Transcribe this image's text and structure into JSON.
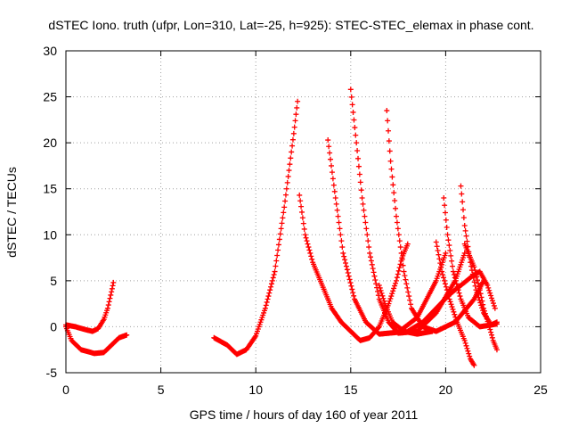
{
  "chart_data": {
    "type": "scatter",
    "title": "dSTEC Iono. truth (ufpr, Lon=310, Lat=-25, h=925): STEC-STEC_elemax in phase cont.",
    "xlabel": "GPS time / hours of day 160 of year 2011",
    "ylabel": "dSTEC  / TECUs",
    "xlim": [
      0,
      25
    ],
    "ylim": [
      -5,
      30
    ],
    "xticks": [
      "0",
      "5",
      "10",
      "15",
      "20",
      "25"
    ],
    "yticks": [
      "-5",
      "0",
      "5",
      "10",
      "15",
      "20",
      "25",
      "30"
    ],
    "grid": true,
    "marker": "+",
    "color": "#ff0000",
    "series": [
      {
        "points": [
          [
            0.0,
            0.2
          ],
          [
            0.5,
            0.0
          ],
          [
            1.0,
            -0.3
          ],
          [
            1.4,
            -0.5
          ],
          [
            1.7,
            -0.2
          ],
          [
            2.0,
            0.8
          ],
          [
            2.2,
            2.0
          ],
          [
            2.4,
            3.8
          ],
          [
            2.5,
            4.8
          ]
        ]
      },
      {
        "points": [
          [
            0.0,
            0.0
          ],
          [
            0.3,
            -1.5
          ],
          [
            0.8,
            -2.5
          ],
          [
            1.5,
            -2.9
          ],
          [
            2.0,
            -2.8
          ],
          [
            2.4,
            -2.0
          ],
          [
            2.8,
            -1.2
          ],
          [
            3.2,
            -0.9
          ]
        ]
      },
      {
        "points": [
          [
            7.8,
            -1.2
          ],
          [
            8.5,
            -2.0
          ],
          [
            9.0,
            -3.0
          ],
          [
            9.5,
            -2.5
          ],
          [
            10.0,
            -1.0
          ],
          [
            10.5,
            2.0
          ],
          [
            11.0,
            6.0
          ],
          [
            11.5,
            13.0
          ],
          [
            12.0,
            21.0
          ],
          [
            12.2,
            24.5
          ]
        ]
      },
      {
        "points": [
          [
            12.3,
            14.3
          ],
          [
            12.6,
            10.0
          ],
          [
            13.0,
            7.0
          ],
          [
            13.5,
            4.5
          ],
          [
            14.0,
            2.0
          ],
          [
            14.5,
            0.5
          ],
          [
            15.0,
            -0.5
          ],
          [
            15.5,
            -1.5
          ],
          [
            16.0,
            -1.2
          ],
          [
            16.5,
            0.0
          ],
          [
            17.0,
            2.5
          ],
          [
            17.4,
            5.0
          ],
          [
            17.7,
            7.5
          ],
          [
            18.0,
            9.0
          ]
        ]
      },
      {
        "points": [
          [
            13.8,
            20.3
          ],
          [
            14.2,
            14.0
          ],
          [
            14.6,
            8.0
          ],
          [
            15.2,
            3.0
          ],
          [
            15.8,
            0.5
          ],
          [
            16.5,
            -0.8
          ],
          [
            17.5,
            -0.6
          ],
          [
            18.5,
            1.0
          ],
          [
            19.5,
            5.0
          ],
          [
            20.0,
            8.0
          ]
        ]
      },
      {
        "points": [
          [
            15.0,
            25.8
          ],
          [
            15.3,
            20.0
          ],
          [
            15.6,
            14.0
          ],
          [
            16.0,
            8.0
          ],
          [
            16.5,
            3.0
          ],
          [
            17.0,
            0.5
          ],
          [
            17.5,
            -0.7
          ],
          [
            18.5,
            -0.5
          ],
          [
            19.5,
            1.5
          ],
          [
            20.5,
            5.0
          ],
          [
            21.0,
            8.0
          ]
        ]
      },
      {
        "points": [
          [
            16.9,
            23.5
          ],
          [
            17.1,
            18.0
          ],
          [
            17.4,
            12.0
          ],
          [
            17.8,
            6.0
          ],
          [
            18.2,
            2.0
          ],
          [
            18.8,
            0.0
          ],
          [
            19.5,
            -0.5
          ],
          [
            20.5,
            0.5
          ],
          [
            21.5,
            3.0
          ],
          [
            22.0,
            5.0
          ]
        ]
      },
      {
        "points": [
          [
            19.9,
            14.0
          ],
          [
            20.1,
            10.0
          ],
          [
            20.4,
            6.0
          ],
          [
            20.8,
            3.0
          ],
          [
            21.2,
            1.0
          ],
          [
            21.8,
            0.0
          ],
          [
            22.7,
            0.3
          ]
        ]
      },
      {
        "points": [
          [
            20.8,
            15.3
          ],
          [
            21.0,
            11.0
          ],
          [
            21.3,
            7.0
          ],
          [
            21.6,
            4.0
          ],
          [
            22.0,
            1.5
          ],
          [
            22.4,
            0.2
          ],
          [
            22.7,
            0.5
          ]
        ]
      },
      {
        "points": [
          [
            16.5,
            4.5
          ],
          [
            16.8,
            2.5
          ],
          [
            17.2,
            0.5
          ],
          [
            17.8,
            -0.5
          ],
          [
            18.5,
            -0.8
          ],
          [
            19.3,
            -0.5
          ]
        ]
      },
      {
        "points": [
          [
            19.5,
            9.2
          ],
          [
            19.8,
            6.0
          ],
          [
            20.2,
            3.0
          ],
          [
            20.6,
            0.5
          ],
          [
            21.0,
            -1.5
          ],
          [
            21.3,
            -3.5
          ],
          [
            21.5,
            -4.2
          ]
        ]
      },
      {
        "points": [
          [
            21.0,
            9.0
          ],
          [
            21.5,
            6.5
          ],
          [
            21.8,
            4.0
          ],
          [
            22.0,
            2.0
          ],
          [
            22.3,
            0.0
          ],
          [
            22.5,
            -1.5
          ],
          [
            22.7,
            -2.5
          ]
        ]
      },
      {
        "points": [
          [
            18.0,
            -0.5
          ],
          [
            18.8,
            0.5
          ],
          [
            19.5,
            2.0
          ],
          [
            20.2,
            3.5
          ],
          [
            20.8,
            4.5
          ],
          [
            21.4,
            5.5
          ],
          [
            21.8,
            6.0
          ],
          [
            22.2,
            4.5
          ],
          [
            22.6,
            2.0
          ]
        ]
      }
    ]
  }
}
